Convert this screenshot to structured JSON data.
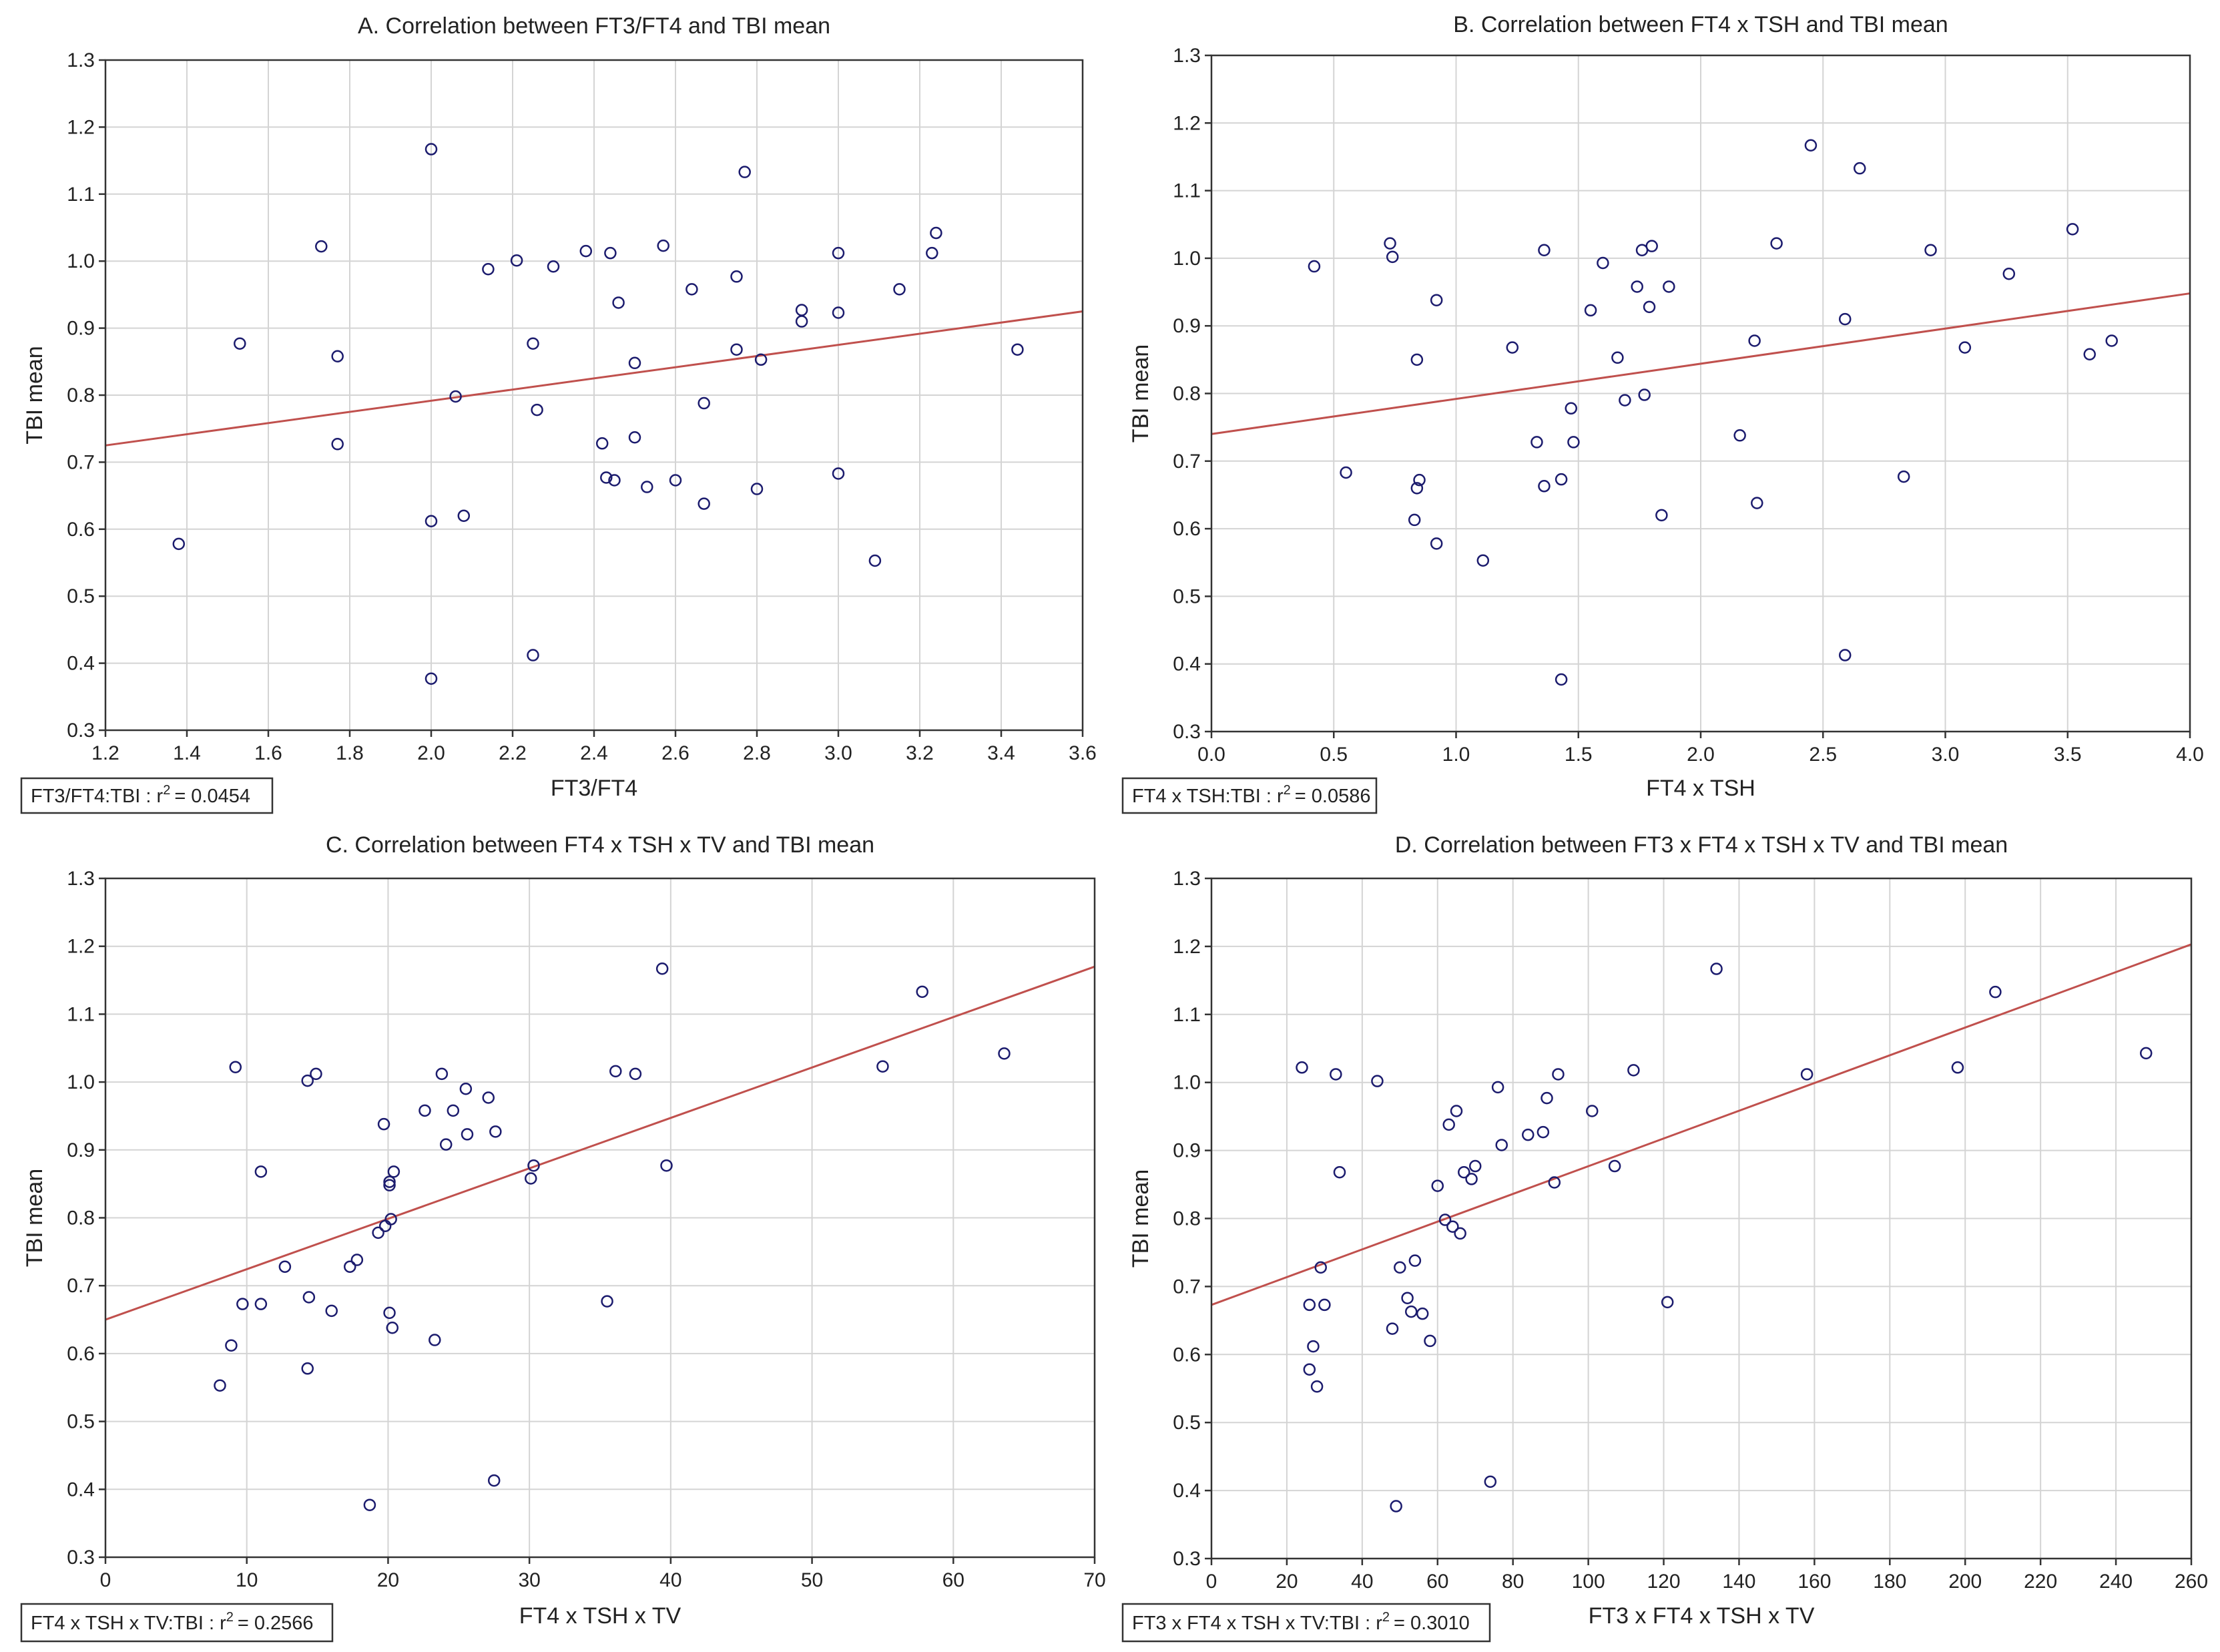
{
  "chart_data": [
    {
      "id": "A",
      "type": "scatter",
      "title": "A. Correlation between FT3/FT4 and TBI mean",
      "xlabel": "FT3/FT4",
      "ylabel": "TBI mean",
      "xlim": [
        1.2,
        3.6
      ],
      "ylim": [
        0.3,
        1.3
      ],
      "xticks": [
        1.2,
        1.4,
        1.6,
        1.8,
        2.0,
        2.2,
        2.4,
        2.6,
        2.8,
        3.0,
        3.2,
        3.4,
        3.6
      ],
      "yticks": [
        0.3,
        0.4,
        0.5,
        0.6,
        0.7,
        0.8,
        0.9,
        1.0,
        1.1,
        1.2,
        1.3
      ],
      "xtick_labels": [
        "1.2",
        "1.4",
        "1.6",
        "1.8",
        "2.0",
        "2.2",
        "2.4",
        "2.6",
        "2.8",
        "3.0",
        "3.2",
        "3.4",
        "3.6"
      ],
      "ytick_labels": [
        "0.3",
        "0.4",
        "0.5",
        "0.6",
        "0.7",
        "0.8",
        "0.9",
        "1.0",
        "1.1",
        "1.2",
        "1.3"
      ],
      "grid": true,
      "fit_line": {
        "x0": 1.2,
        "y0": 0.725,
        "x1": 3.6,
        "y1": 0.925
      },
      "annotation": {
        "label": "FT3/FT4:TBI",
        "r2_prefix": "r",
        "r2_sup": "2",
        "r2_value": "= 0.0454"
      },
      "points": [
        [
          1.38,
          0.578
        ],
        [
          1.53,
          0.877
        ],
        [
          1.73,
          1.022
        ],
        [
          1.77,
          0.858
        ],
        [
          1.77,
          0.727
        ],
        [
          2.0,
          1.167
        ],
        [
          2.0,
          0.612
        ],
        [
          2.0,
          0.377
        ],
        [
          2.06,
          0.798
        ],
        [
          2.08,
          0.62
        ],
        [
          2.14,
          0.988
        ],
        [
          2.21,
          1.001
        ],
        [
          2.25,
          0.877
        ],
        [
          2.25,
          0.412
        ],
        [
          2.26,
          0.778
        ],
        [
          2.3,
          0.992
        ],
        [
          2.38,
          1.015
        ],
        [
          2.42,
          0.728
        ],
        [
          2.43,
          0.677
        ],
        [
          2.44,
          1.012
        ],
        [
          2.45,
          0.673
        ],
        [
          2.46,
          0.938
        ],
        [
          2.5,
          0.848
        ],
        [
          2.5,
          0.737
        ],
        [
          2.53,
          0.663
        ],
        [
          2.57,
          1.023
        ],
        [
          2.6,
          0.673
        ],
        [
          2.64,
          0.958
        ],
        [
          2.67,
          0.788
        ],
        [
          2.67,
          0.638
        ],
        [
          2.75,
          0.977
        ],
        [
          2.75,
          0.868
        ],
        [
          2.77,
          1.133
        ],
        [
          2.8,
          0.66
        ],
        [
          2.81,
          0.853
        ],
        [
          2.91,
          0.927
        ],
        [
          2.91,
          0.91
        ],
        [
          3.0,
          1.012
        ],
        [
          3.0,
          0.923
        ],
        [
          3.0,
          0.683
        ],
        [
          3.09,
          0.553
        ],
        [
          3.15,
          0.958
        ],
        [
          3.23,
          1.012
        ],
        [
          3.24,
          1.042
        ],
        [
          3.44,
          0.868
        ]
      ]
    },
    {
      "id": "B",
      "type": "scatter",
      "title": "B. Correlation between FT4 x TSH and TBI mean",
      "xlabel": "FT4 x TSH",
      "ylabel": "TBI mean",
      "xlim": [
        0.0,
        4.0
      ],
      "ylim": [
        0.3,
        1.3
      ],
      "xticks": [
        0.0,
        0.5,
        1.0,
        1.5,
        2.0,
        2.5,
        3.0,
        3.5,
        4.0
      ],
      "yticks": [
        0.3,
        0.4,
        0.5,
        0.6,
        0.7,
        0.8,
        0.9,
        1.0,
        1.1,
        1.2,
        1.3
      ],
      "xtick_labels": [
        "0.0",
        "0.5",
        "1.0",
        "1.5",
        "2.0",
        "2.5",
        "3.0",
        "3.5",
        "4.0"
      ],
      "ytick_labels": [
        "0.3",
        "0.4",
        "0.5",
        "0.6",
        "0.7",
        "0.8",
        "0.9",
        "1.0",
        "1.1",
        "1.2",
        "1.3"
      ],
      "grid": true,
      "fit_line": {
        "x0": 0.0,
        "y0": 0.74,
        "x1": 4.0,
        "y1": 0.948
      },
      "annotation": {
        "label": "FT4 x TSH:TBI",
        "r2_prefix": "r",
        "r2_sup": "2",
        "r2_value": "= 0.0586"
      },
      "points": [
        [
          0.42,
          0.988
        ],
        [
          0.55,
          0.683
        ],
        [
          0.73,
          1.022
        ],
        [
          0.74,
          1.002
        ],
        [
          0.83,
          0.613
        ],
        [
          0.84,
          0.85
        ],
        [
          0.84,
          0.66
        ],
        [
          0.85,
          0.672
        ],
        [
          0.92,
          0.938
        ],
        [
          0.92,
          0.578
        ],
        [
          1.11,
          0.553
        ],
        [
          1.23,
          0.868
        ],
        [
          1.33,
          0.728
        ],
        [
          1.36,
          1.012
        ],
        [
          1.36,
          0.663
        ],
        [
          1.43,
          0.673
        ],
        [
          1.43,
          0.377
        ],
        [
          1.47,
          0.778
        ],
        [
          1.48,
          0.728
        ],
        [
          1.55,
          0.923
        ],
        [
          1.6,
          0.993
        ],
        [
          1.66,
          0.853
        ],
        [
          1.69,
          0.79
        ],
        [
          1.74,
          0.958
        ],
        [
          1.76,
          1.012
        ],
        [
          1.77,
          0.798
        ],
        [
          1.79,
          0.928
        ],
        [
          1.8,
          1.018
        ],
        [
          1.84,
          0.62
        ],
        [
          1.87,
          0.958
        ],
        [
          2.16,
          0.738
        ],
        [
          2.22,
          0.878
        ],
        [
          2.23,
          0.638
        ],
        [
          2.31,
          1.022
        ],
        [
          2.45,
          1.167
        ],
        [
          2.59,
          0.91
        ],
        [
          2.59,
          0.413
        ],
        [
          2.65,
          1.133
        ],
        [
          2.83,
          0.677
        ],
        [
          2.94,
          1.012
        ],
        [
          3.08,
          0.868
        ],
        [
          3.26,
          0.977
        ],
        [
          3.52,
          1.043
        ],
        [
          3.59,
          0.858
        ],
        [
          3.68,
          0.878
        ]
      ]
    },
    {
      "id": "C",
      "type": "scatter",
      "title": "C. Correlation between FT4 x TSH x TV and TBI mean",
      "xlabel": "FT4 x TSH x TV",
      "ylabel": "TBI mean",
      "xlim": [
        0,
        70
      ],
      "ylim": [
        0.3,
        1.3
      ],
      "xticks": [
        0,
        10,
        20,
        30,
        40,
        50,
        60,
        70
      ],
      "yticks": [
        0.3,
        0.4,
        0.5,
        0.6,
        0.7,
        0.8,
        0.9,
        1.0,
        1.1,
        1.2,
        1.3
      ],
      "xtick_labels": [
        "0",
        "10",
        "20",
        "30",
        "40",
        "50",
        "60",
        "70"
      ],
      "ytick_labels": [
        "0.3",
        "0.4",
        "0.5",
        "0.6",
        "0.7",
        "0.8",
        "0.9",
        "1.0",
        "1.1",
        "1.2",
        "1.3"
      ],
      "grid": true,
      "fit_line": {
        "x0": 0,
        "y0": 0.65,
        "x1": 70,
        "y1": 1.17
      },
      "annotation": {
        "label": "FT4 x TSH x TV:TBI",
        "r2_prefix": "r",
        "r2_sup": "2",
        "r2_value": "= 0.2566"
      },
      "points": [
        [
          8.1,
          0.553
        ],
        [
          8.9,
          0.612
        ],
        [
          9.2,
          1.022
        ],
        [
          9.7,
          0.673
        ],
        [
          11.0,
          0.673
        ],
        [
          11.0,
          0.868
        ],
        [
          12.7,
          0.728
        ],
        [
          14.3,
          1.002
        ],
        [
          14.3,
          0.578
        ],
        [
          14.4,
          0.683
        ],
        [
          14.9,
          1.012
        ],
        [
          16.0,
          0.663
        ],
        [
          17.3,
          0.728
        ],
        [
          17.8,
          0.738
        ],
        [
          18.7,
          0.377
        ],
        [
          19.3,
          0.778
        ],
        [
          19.7,
          0.938
        ],
        [
          19.8,
          0.788
        ],
        [
          20.1,
          0.853
        ],
        [
          20.1,
          0.848
        ],
        [
          20.1,
          0.66
        ],
        [
          20.2,
          0.798
        ],
        [
          20.3,
          0.638
        ],
        [
          20.4,
          0.868
        ],
        [
          22.6,
          0.958
        ],
        [
          23.3,
          0.62
        ],
        [
          23.8,
          1.012
        ],
        [
          24.1,
          0.908
        ],
        [
          24.6,
          0.958
        ],
        [
          25.5,
          0.99
        ],
        [
          25.6,
          0.923
        ],
        [
          27.1,
          0.977
        ],
        [
          27.5,
          0.413
        ],
        [
          27.6,
          0.927
        ],
        [
          30.1,
          0.858
        ],
        [
          30.3,
          0.877
        ],
        [
          35.5,
          0.677
        ],
        [
          36.1,
          1.016
        ],
        [
          37.5,
          1.012
        ],
        [
          39.4,
          1.167
        ],
        [
          39.7,
          0.877
        ],
        [
          55.0,
          1.023
        ],
        [
          57.8,
          1.133
        ],
        [
          63.6,
          1.042
        ]
      ]
    },
    {
      "id": "D",
      "type": "scatter",
      "title": "D. Correlation between FT3 x FT4 x TSH x TV and TBI mean",
      "xlabel": "FT3 x FT4 x TSH x TV",
      "ylabel": "TBI mean",
      "xlim": [
        0,
        260
      ],
      "ylim": [
        0.3,
        1.3
      ],
      "xticks": [
        0,
        20,
        40,
        60,
        80,
        100,
        120,
        140,
        160,
        180,
        200,
        220,
        240,
        260
      ],
      "yticks": [
        0.3,
        0.4,
        0.5,
        0.6,
        0.7,
        0.8,
        0.9,
        1.0,
        1.1,
        1.2,
        1.3
      ],
      "xtick_labels": [
        "0",
        "20",
        "40",
        "60",
        "80",
        "100",
        "120",
        "140",
        "160",
        "180",
        "200",
        "220",
        "240",
        "260"
      ],
      "ytick_labels": [
        "0.3",
        "0.4",
        "0.5",
        "0.6",
        "0.7",
        "0.8",
        "0.9",
        "1.0",
        "1.1",
        "1.2",
        "1.3"
      ],
      "grid": true,
      "fit_line": {
        "x0": 0,
        "y0": 0.673,
        "x1": 260,
        "y1": 1.203
      },
      "annotation": {
        "label": "FT3 x FT4 x TSH x TV:TBI",
        "r2_prefix": "r",
        "r2_sup": "2",
        "r2_value": "= 0.3010"
      },
      "points": [
        [
          24,
          1.022
        ],
        [
          26,
          0.673
        ],
        [
          26,
          0.578
        ],
        [
          27,
          0.612
        ],
        [
          28,
          0.553
        ],
        [
          29,
          0.728
        ],
        [
          30,
          0.673
        ],
        [
          33,
          1.012
        ],
        [
          34,
          0.868
        ],
        [
          44,
          1.002
        ],
        [
          48,
          0.638
        ],
        [
          49,
          0.377
        ],
        [
          50,
          0.728
        ],
        [
          52,
          0.683
        ],
        [
          53,
          0.663
        ],
        [
          54,
          0.738
        ],
        [
          56,
          0.66
        ],
        [
          58,
          0.62
        ],
        [
          60,
          0.848
        ],
        [
          62,
          0.798
        ],
        [
          63,
          0.938
        ],
        [
          64,
          0.788
        ],
        [
          65,
          0.958
        ],
        [
          66,
          0.778
        ],
        [
          67,
          0.868
        ],
        [
          69,
          0.858
        ],
        [
          70,
          0.877
        ],
        [
          74,
          0.413
        ],
        [
          76,
          0.993
        ],
        [
          77,
          0.908
        ],
        [
          84,
          0.923
        ],
        [
          88,
          0.927
        ],
        [
          89,
          0.977
        ],
        [
          91,
          0.853
        ],
        [
          92,
          1.012
        ],
        [
          101,
          0.958
        ],
        [
          107,
          0.877
        ],
        [
          112,
          1.018
        ],
        [
          121,
          0.677
        ],
        [
          134,
          1.167
        ],
        [
          158,
          1.012
        ],
        [
          198,
          1.022
        ],
        [
          208,
          1.133
        ],
        [
          248,
          1.043
        ]
      ]
    }
  ]
}
